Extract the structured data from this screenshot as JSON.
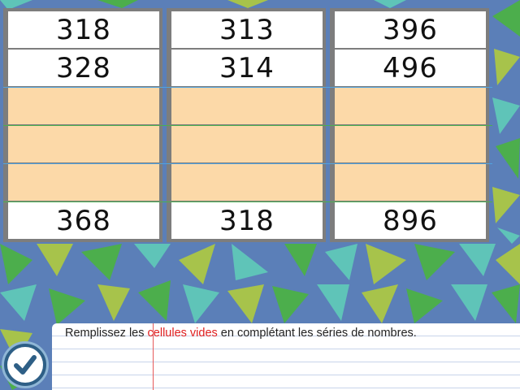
{
  "table": {
    "columns": [
      {
        "cells": [
          "318",
          "328",
          "",
          "",
          "",
          "368"
        ]
      },
      {
        "cells": [
          "313",
          "314",
          "",
          "",
          "",
          "318"
        ]
      },
      {
        "cells": [
          "396",
          "496",
          "",
          "",
          "",
          "896"
        ]
      }
    ]
  },
  "instruction": {
    "before": "Remplissez les ",
    "highlight": "cellules vides",
    "after": " en complétant les séries de nombres."
  },
  "check_button": {
    "icon": "checkmark-icon"
  },
  "colors": {
    "background": "#5b7fb8",
    "empty_cell": "#fcd9a8",
    "highlight_text": "#e02020",
    "check_button": "#2e5f86"
  }
}
